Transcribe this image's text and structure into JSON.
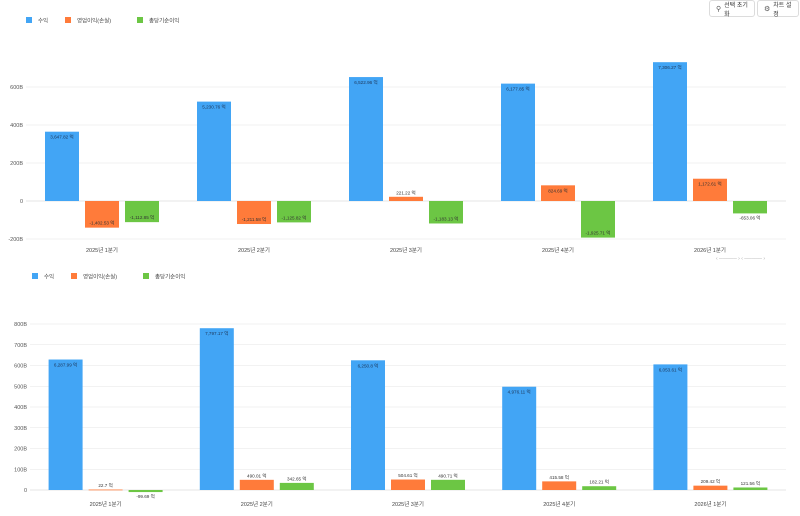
{
  "toolbar": {
    "reset_label": "선택 초기화",
    "settings_label": "차트 설정",
    "reset_icon": "search-icon",
    "settings_icon": "gear-icon"
  },
  "colors": {
    "revenue": "#42a5f5",
    "operating": "#ff7b3a",
    "net": "#6cc644",
    "grid": "#e6e6e6"
  },
  "chart_data": [
    {
      "type": "bar",
      "categories": [
        "2025년 1분기",
        "2025년 2분기",
        "2025년 3분기",
        "2025년 4분기",
        "2026년 1분기"
      ],
      "ylim": [
        -2000,
        8000
      ],
      "yticks": [
        -2000,
        0,
        2000,
        4000,
        6000
      ],
      "ytick_labels": [
        "-200B",
        "0",
        "200B",
        "400B",
        "600B"
      ],
      "legend_position": "top-left",
      "series": [
        {
          "name": "수익",
          "values": [
            3647.82,
            5230.76,
            6522.96,
            6177.85,
            7306.27
          ],
          "labels": [
            "3,647.82 억",
            "5,230.76 억",
            "6,522.96 억",
            "6,177.85 억",
            "7,306.27 억"
          ]
        },
        {
          "name": "영업이익(손실)",
          "values": [
            -1402.53,
            -1211.58,
            221.22,
            824.69,
            1172.61
          ],
          "labels": [
            "-1,402.53 억",
            "-1,211.58 억",
            "221.22 억",
            "824.69 억",
            "1,172.61 억"
          ]
        },
        {
          "name": "총당기순이익",
          "values": [
            -1112.85,
            -1125.82,
            -1183.13,
            -1925.71,
            -653.06
          ],
          "labels": [
            "-1,112.85 억",
            "-1,125.82 억",
            "-1,183.13 억",
            "-1,925.71 억",
            "-653.06 억"
          ]
        }
      ]
    },
    {
      "type": "bar",
      "categories": [
        "2025년 1분기",
        "2025년 2분기",
        "2025년 3분기",
        "2025년 4분기",
        "2026년 1분기"
      ],
      "ylim": [
        0,
        8000
      ],
      "yticks": [
        0,
        1000,
        2000,
        3000,
        4000,
        5000,
        6000,
        7000,
        8000
      ],
      "ytick_labels": [
        "0",
        "100B",
        "200B",
        "300B",
        "400B",
        "500B",
        "600B",
        "700B",
        "800B"
      ],
      "legend_position": "top-left",
      "series": [
        {
          "name": "수익",
          "values": [
            6287.99,
            7797.17,
            6250.8,
            4976.11,
            6053.61
          ],
          "labels": [
            "6,287.99 억",
            "7,797.17 억",
            "6,250.8 억",
            "4,976.11 억",
            "6,053.61 억"
          ]
        },
        {
          "name": "영업이익(손실)",
          "values": [
            22.7,
            490.01,
            504.61,
            415.58,
            209.42
          ],
          "labels": [
            "22.7 억",
            "490.01 억",
            "504.61 억",
            "415.58 억",
            "209.42 억"
          ]
        },
        {
          "name": "총당기순이익",
          "values": [
            -99.69,
            342.65,
            490.71,
            182.21,
            121.56
          ],
          "labels": [
            "-99.69 억",
            "342.65 억",
            "490.71 억",
            "182.21 억",
            "121.56 억"
          ]
        }
      ]
    }
  ]
}
